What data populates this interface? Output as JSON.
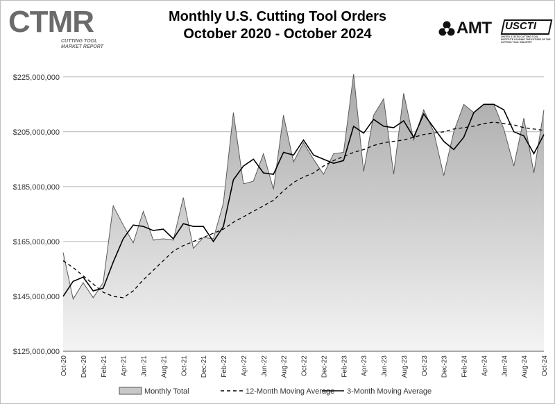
{
  "header": {
    "logo_left_text": "CTMR",
    "logo_left_sub": "Cutting Tool Market Report",
    "logo_amt": "AMT",
    "logo_usci": "USCTI",
    "logo_usci_sub": "UNITED STATES CUTTING TOOL INSTITUTE  LEADING THE FUTURE OF THE CUTTING TOOL INDUSTRY"
  },
  "chart_data": {
    "type": "area",
    "title": "Monthly U.S. Cutting Tool Orders",
    "subtitle": "October 2020 - October 2024",
    "ylim": [
      125000000,
      230000000
    ],
    "yticks": [
      125000000,
      145000000,
      165000000,
      185000000,
      205000000,
      225000000
    ],
    "ytick_labels": [
      "$125,000,000",
      "$145,000,000",
      "$165,000,000",
      "$185,000,000",
      "$205,000,000",
      "$225,000,000"
    ],
    "xtick_labels": [
      "Oct-20",
      "Dec-20",
      "Feb-21",
      "Apr-21",
      "Jun-21",
      "Aug-21",
      "Oct-21",
      "Dec-21",
      "Feb-22",
      "Apr-22",
      "Jun-22",
      "Aug-22",
      "Oct-22",
      "Dec-22",
      "Feb-23",
      "Apr-23",
      "Jun-23",
      "Aug-23",
      "Oct-23",
      "Dec-23",
      "Feb-24",
      "Apr-24",
      "Jun-24",
      "Aug-24",
      "Oct-24"
    ],
    "xtick_every": 2,
    "grid": true,
    "legend_position": "bottom",
    "colors": {
      "area_fill_top": "#a8a8a8",
      "area_fill_bottom": "#f4f4f4",
      "area_stroke": "#5a5a5a",
      "ma12": "#000000",
      "ma3": "#000000",
      "grid": "#b5b5b5"
    },
    "series": [
      {
        "name": "Monthly Total",
        "style": "area",
        "values": [
          161000000,
          144000000,
          150000000,
          144500000,
          150000000,
          178000000,
          171000000,
          164500000,
          176000000,
          165500000,
          166000000,
          165500000,
          181000000,
          162500000,
          166500000,
          166000000,
          179000000,
          212000000,
          186000000,
          187000000,
          197000000,
          184000000,
          211000000,
          194000000,
          201000000,
          195000000,
          189500000,
          197000000,
          197500000,
          226000000,
          190500000,
          211000000,
          217000000,
          189500000,
          219000000,
          202000000,
          213000000,
          205000000,
          189000000,
          205000000,
          215000000,
          212000000,
          215000000,
          215000000,
          206000000,
          192500000,
          210000000,
          190000000,
          213000000
        ]
      },
      {
        "name": "12-Month Moving Average",
        "style": "dashed",
        "values": [
          158000000,
          155500000,
          152500000,
          149500000,
          146500000,
          145000000,
          144500000,
          147000000,
          151000000,
          154500000,
          158000000,
          161500000,
          163500000,
          165000000,
          166500000,
          168000000,
          169500000,
          172000000,
          174000000,
          176000000,
          178000000,
          180000000,
          183500000,
          186500000,
          188500000,
          190000000,
          192500000,
          194500000,
          196000000,
          197500000,
          198500000,
          200000000,
          201000000,
          201500000,
          202000000,
          203000000,
          204000000,
          204500000,
          205000000,
          206000000,
          206500000,
          207000000,
          208000000,
          208500000,
          208000000,
          207500000,
          206500000,
          206000000,
          205500000
        ]
      },
      {
        "name": "3-Month Moving Average",
        "style": "solid",
        "values": [
          145000000,
          150500000,
          152000000,
          147000000,
          148000000,
          157500000,
          166000000,
          171000000,
          170500000,
          169000000,
          169500000,
          166000000,
          171500000,
          170500000,
          170500000,
          165000000,
          170500000,
          187500000,
          192500000,
          195000000,
          190000000,
          189500000,
          197500000,
          196500000,
          202000000,
          196500000,
          195000000,
          193500000,
          194500000,
          207000000,
          204500000,
          209500000,
          207000000,
          206500000,
          209000000,
          203000000,
          211500000,
          206500000,
          201500000,
          198500000,
          203000000,
          212000000,
          215000000,
          215000000,
          213000000,
          205000000,
          203500000,
          197000000,
          204000000
        ]
      }
    ]
  }
}
